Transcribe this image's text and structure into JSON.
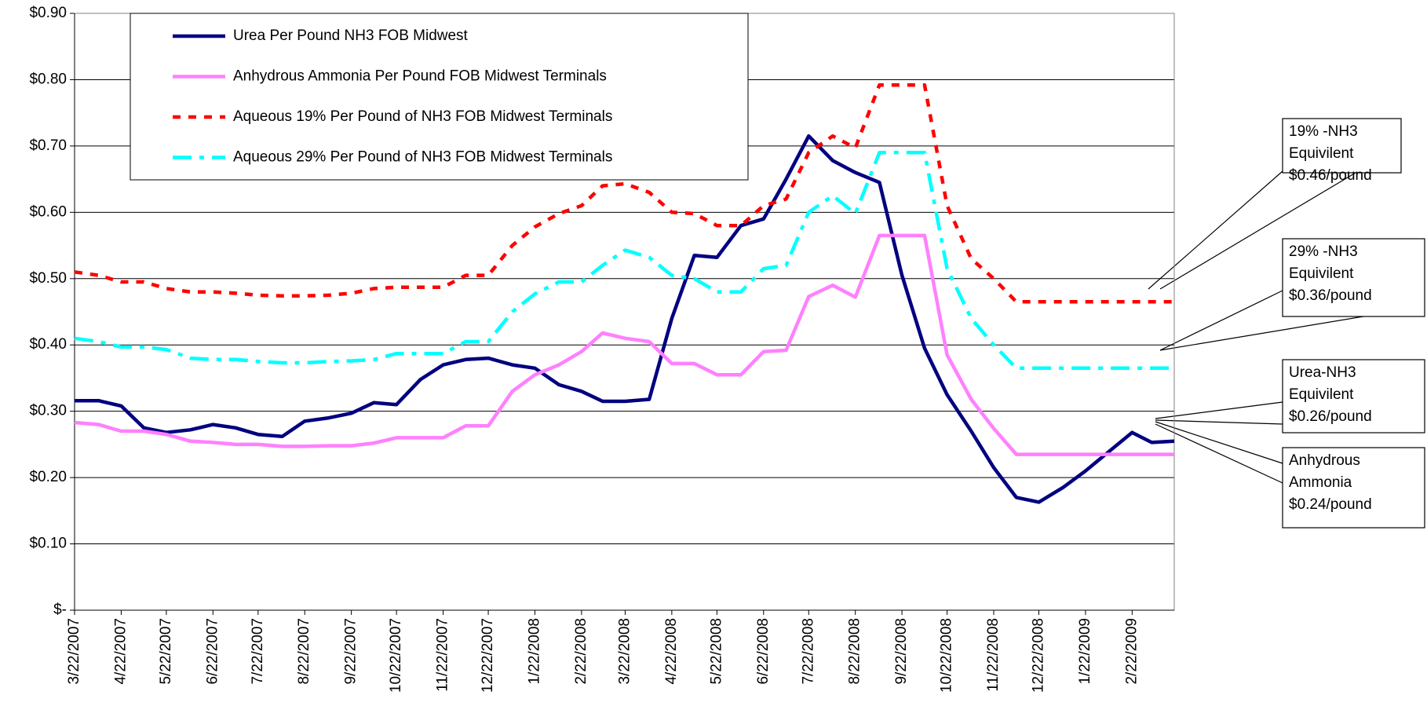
{
  "chart_data": {
    "type": "line",
    "ylim": [
      0,
      0.9
    ],
    "yticks": [
      {
        "value": 0,
        "label": "$-"
      },
      {
        "value": 0.1,
        "label": "$0.10"
      },
      {
        "value": 0.2,
        "label": "$0.20"
      },
      {
        "value": 0.3,
        "label": "$0.30"
      },
      {
        "value": 0.4,
        "label": "$0.40"
      },
      {
        "value": 0.5,
        "label": "$0.50"
      },
      {
        "value": 0.6,
        "label": "$0.60"
      },
      {
        "value": 0.7,
        "label": "$0.70"
      },
      {
        "value": 0.8,
        "label": "$0.80"
      },
      {
        "value": 0.9,
        "label": "$0.90"
      }
    ],
    "grid": true,
    "xlim": [
      "3/22/2007",
      "3/22/2009"
    ],
    "xticks": [
      "3/22/2007",
      "4/22/2007",
      "5/22/2007",
      "6/22/2007",
      "7/22/2007",
      "8/22/2007",
      "9/22/2007",
      "10/22/2007",
      "11/22/2007",
      "12/22/2007",
      "1/22/2008",
      "2/22/2008",
      "3/22/2008",
      "4/22/2008",
      "5/22/2008",
      "6/22/2008",
      "7/22/2008",
      "8/22/2008",
      "9/22/2008",
      "10/22/2008",
      "11/22/2008",
      "12/22/2008",
      "1/22/2009",
      "2/22/2009"
    ],
    "x": [
      "3/22/2007",
      "4/7/2007",
      "4/22/2007",
      "5/7/2007",
      "5/22/2007",
      "6/7/2007",
      "6/22/2007",
      "7/7/2007",
      "7/22/2007",
      "8/7/2007",
      "8/22/2007",
      "9/7/2007",
      "9/22/2007",
      "10/7/2007",
      "10/22/2007",
      "11/7/2007",
      "11/22/2007",
      "12/7/2007",
      "12/22/2007",
      "1/7/2008",
      "1/22/2008",
      "2/7/2008",
      "2/22/2008",
      "3/7/2008",
      "3/22/2008",
      "4/7/2008",
      "4/22/2008",
      "5/7/2008",
      "5/22/2008",
      "6/7/2008",
      "6/22/2008",
      "7/7/2008",
      "7/22/2008",
      "8/7/2008",
      "8/22/2008",
      "9/7/2008",
      "9/22/2008",
      "10/7/2008",
      "10/22/2008",
      "11/7/2008",
      "11/22/2008",
      "12/7/2008",
      "12/22/2008",
      "1/7/2009",
      "1/22/2009",
      "2/7/2009",
      "2/22/2009",
      "3/7/2009",
      "3/22/2009"
    ],
    "series": [
      {
        "name": "Urea Per Pound NH3 FOB Midwest",
        "color": "#000080",
        "dash": "solid",
        "values": [
          0.316,
          0.316,
          0.308,
          0.275,
          0.268,
          0.272,
          0.28,
          0.275,
          0.265,
          0.262,
          0.285,
          0.29,
          0.297,
          0.313,
          0.31,
          0.348,
          0.37,
          0.378,
          0.38,
          0.37,
          0.365,
          0.34,
          0.33,
          0.315,
          0.315,
          0.318,
          0.44,
          0.535,
          0.532,
          0.58,
          0.59,
          0.65,
          0.715,
          0.678,
          0.66,
          0.645,
          0.505,
          0.395,
          0.325,
          0.27,
          0.215,
          0.17,
          0.163,
          0.185,
          0.21,
          0.24,
          0.268,
          0.253,
          0.255
        ]
      },
      {
        "name": "Anhydrous Ammonia Per Pound FOB Midwest Terminals",
        "color": "#ff80ff",
        "dash": "solid",
        "values": [
          0.283,
          0.28,
          0.27,
          0.27,
          0.265,
          0.255,
          0.253,
          0.25,
          0.25,
          0.247,
          0.247,
          0.248,
          0.248,
          0.252,
          0.26,
          0.26,
          0.26,
          0.278,
          0.278,
          0.33,
          0.355,
          0.37,
          0.39,
          0.418,
          0.41,
          0.405,
          0.372,
          0.372,
          0.355,
          0.355,
          0.39,
          0.392,
          0.473,
          0.49,
          0.472,
          0.565,
          0.565,
          0.565,
          0.385,
          0.318,
          0.274,
          0.235,
          0.235,
          0.235,
          0.235,
          0.235,
          0.235,
          0.235,
          0.235
        ]
      },
      {
        "name": "Aqueous 19% Per Pound of NH3 FOB Midwest Terminals",
        "color": "#ff0000",
        "dash": "dashed",
        "values": [
          0.51,
          0.505,
          0.495,
          0.495,
          0.485,
          0.48,
          0.48,
          0.478,
          0.475,
          0.474,
          0.474,
          0.475,
          0.478,
          0.485,
          0.487,
          0.487,
          0.487,
          0.505,
          0.505,
          0.55,
          0.578,
          0.598,
          0.61,
          0.64,
          0.643,
          0.63,
          0.6,
          0.598,
          0.58,
          0.58,
          0.61,
          0.62,
          0.69,
          0.715,
          0.697,
          0.792,
          0.792,
          0.792,
          0.61,
          0.53,
          0.5,
          0.465,
          0.465,
          0.465,
          0.465,
          0.465,
          0.465,
          0.465,
          0.465
        ]
      },
      {
        "name": "Aqueous 29% Per Pound of NH3 FOB Midwest Terminals",
        "color": "#00ffff",
        "dash": "dashdot",
        "values": [
          0.41,
          0.405,
          0.397,
          0.397,
          0.393,
          0.38,
          0.378,
          0.378,
          0.375,
          0.373,
          0.373,
          0.375,
          0.376,
          0.378,
          0.387,
          0.387,
          0.387,
          0.405,
          0.405,
          0.45,
          0.477,
          0.495,
          0.495,
          0.52,
          0.543,
          0.532,
          0.505,
          0.5,
          0.48,
          0.48,
          0.515,
          0.52,
          0.6,
          0.625,
          0.598,
          0.69,
          0.69,
          0.69,
          0.515,
          0.44,
          0.4,
          0.365,
          0.365,
          0.365,
          0.365,
          0.365,
          0.365,
          0.365,
          0.365
        ]
      }
    ],
    "annotations": [
      {
        "lines": [
          "19% -NH3",
          "Equivilent",
          "$0.46/pound"
        ]
      },
      {
        "lines": [
          "29% -NH3",
          "Equivilent",
          "$0.36/pound"
        ]
      },
      {
        "lines": [
          "Urea-NH3",
          "Equivilent",
          "$0.26/pound"
        ]
      },
      {
        "lines": [
          "Anhydrous",
          "Ammonia",
          "$0.24/pound"
        ]
      }
    ]
  }
}
